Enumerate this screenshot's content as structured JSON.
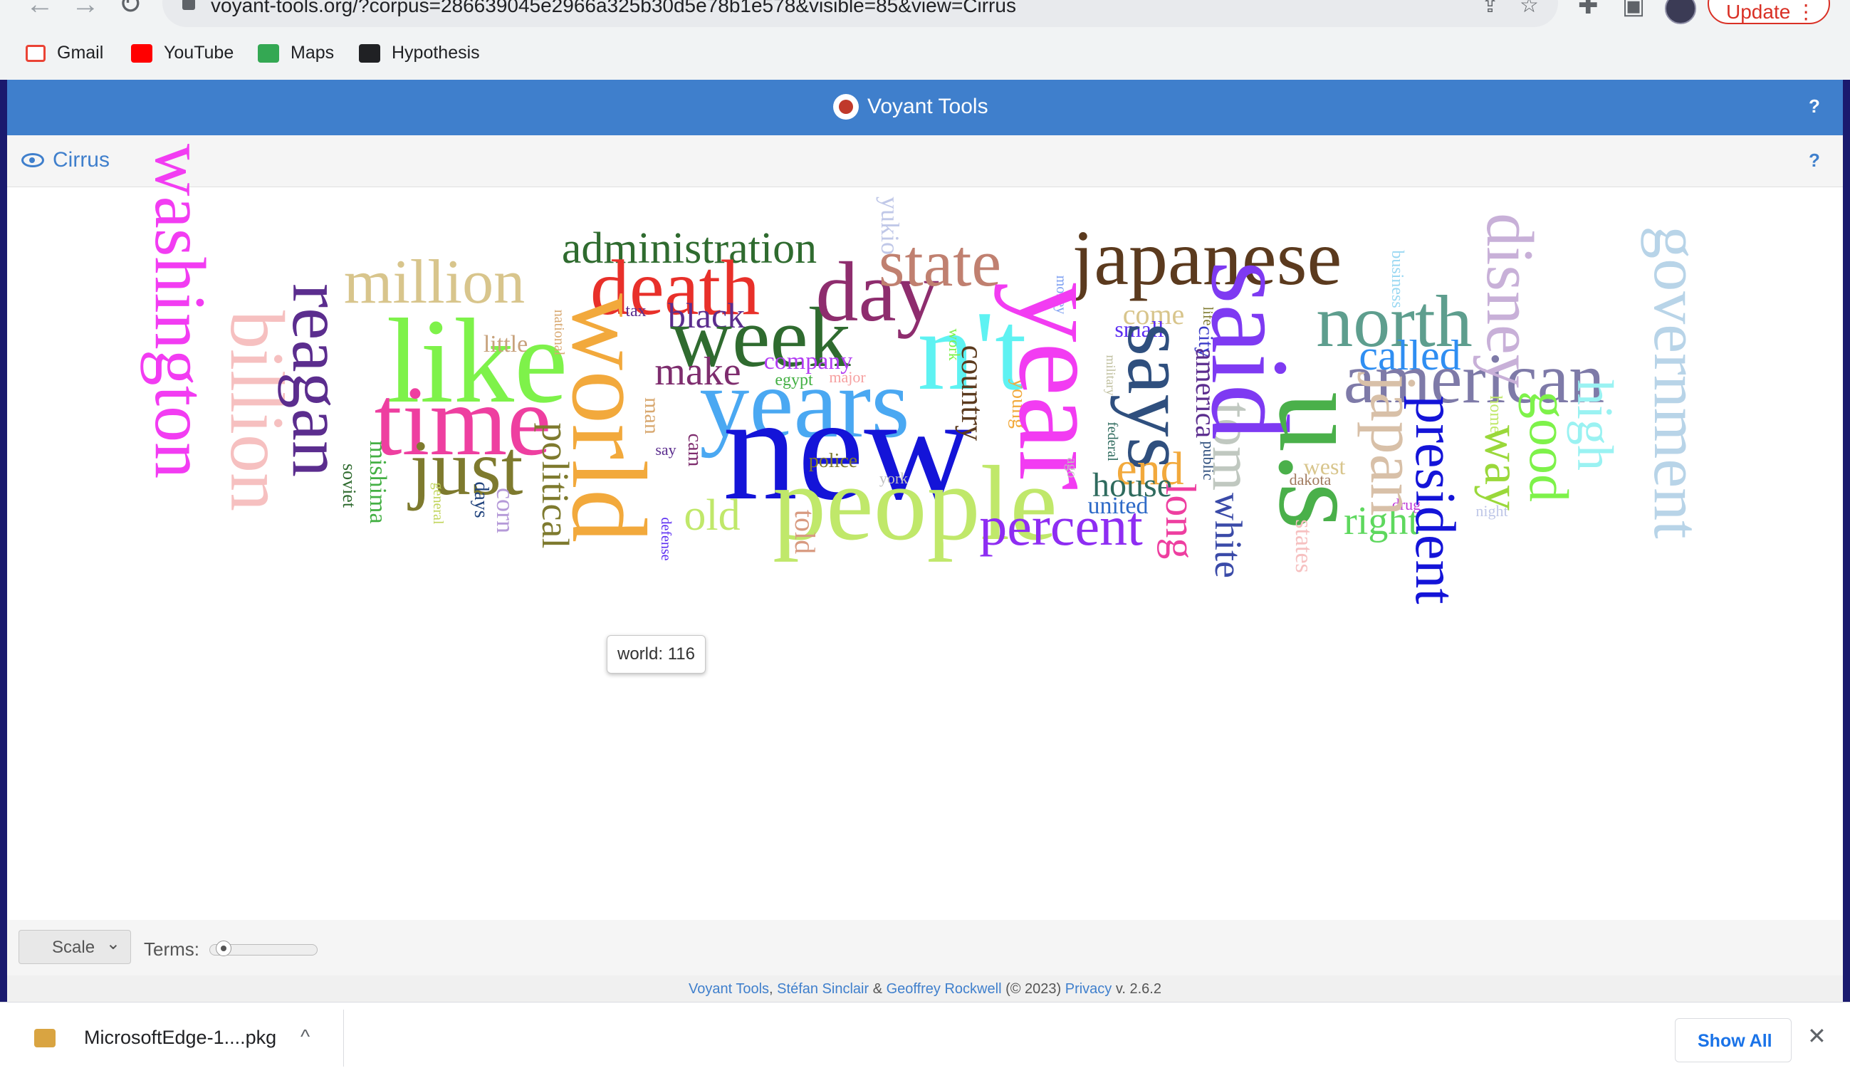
{
  "browser": {
    "url": "voyant-tools.org/?corpus=286639045e2966a325b30d5e78b1e578&visible=85&view=Cirrus",
    "update_label": "Update",
    "bookmarks": [
      "Gmail",
      "YouTube",
      "Maps",
      "Hypothesis"
    ]
  },
  "app": {
    "title": "Voyant Tools",
    "help": "?",
    "panel_title": "Cirrus"
  },
  "cloud": {
    "words": [
      {
        "t": "washington",
        "c": "#f23cf2",
        "s": 102,
        "r": 90
      },
      {
        "t": "billion",
        "c": "#f6c0c0",
        "s": 108,
        "r": 90
      },
      {
        "t": "reagan",
        "c": "#5b2d8e",
        "s": 102,
        "r": 90
      },
      {
        "t": "million",
        "c": "#d8c58c",
        "s": 88,
        "r": 0
      },
      {
        "t": "like",
        "c": "#7ef24a",
        "s": 170,
        "r": 0
      },
      {
        "t": "little",
        "c": "#c7a27c",
        "s": 34,
        "r": 0
      },
      {
        "t": "time",
        "c": "#ee3fa0",
        "s": 140,
        "r": 0
      },
      {
        "t": "just",
        "c": "#7e7a2e",
        "s": 110,
        "r": 0
      },
      {
        "t": "soviet",
        "c": "#2f6b2f",
        "s": 26,
        "r": 90
      },
      {
        "t": "mishima",
        "c": "#44b044",
        "s": 34,
        "r": 90
      },
      {
        "t": "general",
        "c": "#c0d45a",
        "s": 20,
        "r": 90
      },
      {
        "t": "days",
        "c": "#22447e",
        "s": 28,
        "r": 90
      },
      {
        "t": "corn",
        "c": "#b59ad8",
        "s": 36,
        "r": 90
      },
      {
        "t": "political",
        "c": "#7e7a2e",
        "s": 54,
        "r": 90
      },
      {
        "t": "national",
        "c": "#d8a870",
        "s": 20,
        "r": 90
      },
      {
        "t": "administration",
        "c": "#2f6b2f",
        "s": 62,
        "r": 0
      },
      {
        "t": "death",
        "c": "#e8302a",
        "s": 110,
        "r": 0
      },
      {
        "t": "world",
        "c": "#f2a93c",
        "s": 150,
        "r": 90
      },
      {
        "t": "tax",
        "c": "#5b2d8e",
        "s": 24,
        "r": 0
      },
      {
        "t": "black",
        "c": "#5b2d8e",
        "s": 50,
        "r": 0
      },
      {
        "t": "week",
        "c": "#2f6b2f",
        "s": 120,
        "r": 0
      },
      {
        "t": "make",
        "c": "#7e2d6e",
        "s": 56,
        "r": 0
      },
      {
        "t": "company",
        "c": "#b23cf2",
        "s": 34,
        "r": 0
      },
      {
        "t": "egypt",
        "c": "#44b044",
        "s": 24,
        "r": 0
      },
      {
        "t": "major",
        "c": "#f6a0a0",
        "s": 22,
        "r": 0
      },
      {
        "t": "years",
        "c": "#4aa8f2",
        "s": 140,
        "r": 0
      },
      {
        "t": "man",
        "c": "#d8a870",
        "s": 30,
        "r": 90
      },
      {
        "t": "say",
        "c": "#5b2d8e",
        "s": 22,
        "r": 0
      },
      {
        "t": "cam",
        "c": "#7e2d6e",
        "s": 28,
        "r": 90
      },
      {
        "t": "new",
        "c": "#1414d8",
        "s": 210,
        "r": 0
      },
      {
        "t": "police",
        "c": "#7e7a2e",
        "s": 28,
        "r": 0
      },
      {
        "t": "york",
        "c": "#c0c0c0",
        "s": 22,
        "r": 0
      },
      {
        "t": "old",
        "c": "#c0e86a",
        "s": 62,
        "r": 0
      },
      {
        "t": "people",
        "c": "#c0e86a",
        "s": 150,
        "r": 0
      },
      {
        "t": "told",
        "c": "#d89a80",
        "s": 40,
        "r": 90
      },
      {
        "t": "defense",
        "c": "#5b2df2",
        "s": 20,
        "r": 90
      },
      {
        "t": "day",
        "c": "#8e2d6e",
        "s": 120,
        "r": 0
      },
      {
        "t": "yukio",
        "c": "#c0c8e8",
        "s": 36,
        "r": 90
      },
      {
        "t": "state",
        "c": "#c08070",
        "s": 94,
        "r": 0
      },
      {
        "t": "n't",
        "c": "#5ef2f2",
        "s": 160,
        "r": 0
      },
      {
        "t": "work",
        "c": "#7ef24a",
        "s": 22,
        "r": 90
      },
      {
        "t": "country",
        "c": "#5b3a1e",
        "s": 44,
        "r": 90
      },
      {
        "t": "young",
        "c": "#f2a93c",
        "s": 28,
        "r": 90
      },
      {
        "t": "japanese",
        "c": "#5b3a1e",
        "s": 110,
        "r": 0
      },
      {
        "t": "money",
        "c": "#7ea0f2",
        "s": 20,
        "r": 90
      },
      {
        "t": "year",
        "c": "#f23cf2",
        "s": 170,
        "r": 90
      },
      {
        "t": "come",
        "c": "#d8c58c",
        "s": 40,
        "r": 0
      },
      {
        "t": "small",
        "c": "#5b2df2",
        "s": 32,
        "r": 0
      },
      {
        "t": "military",
        "c": "#c0c0a0",
        "s": 18,
        "r": 90
      },
      {
        "t": "says",
        "c": "#2f4f7e",
        "s": 120,
        "r": 90
      },
      {
        "t": "federal",
        "c": "#2f6b5e",
        "s": 20,
        "r": 90
      },
      {
        "t": "ago",
        "c": "#c0c0c0",
        "s": 20,
        "r": 90
      },
      {
        "t": "end",
        "c": "#f2a93c",
        "s": 66,
        "r": 0
      },
      {
        "t": "house",
        "c": "#2f6b5e",
        "s": 48,
        "r": 0
      },
      {
        "t": "united",
        "c": "#2f6bc8",
        "s": 34,
        "r": 0
      },
      {
        "t": "percent",
        "c": "#8e2df2",
        "s": 78,
        "r": 0
      },
      {
        "t": "life",
        "c": "#7e7a2e",
        "s": 20,
        "r": 90
      },
      {
        "t": "city",
        "c": "#3a3ac8",
        "s": 30,
        "r": 90
      },
      {
        "t": "america",
        "c": "#5b2d8e",
        "s": 40,
        "r": 90
      },
      {
        "t": "public",
        "c": "#2f4f7e",
        "s": 22,
        "r": 90
      },
      {
        "t": "long",
        "c": "#ee3fa0",
        "s": 60,
        "r": 90
      },
      {
        "t": "tom",
        "c": "#c0c8c0",
        "s": 80,
        "r": 90
      },
      {
        "t": "white",
        "c": "#3a4aa8",
        "s": 54,
        "r": 90
      },
      {
        "t": "said",
        "c": "#7e3af2",
        "s": 156,
        "r": 90
      },
      {
        "t": "u.s",
        "c": "#4ab04a",
        "s": 170,
        "r": 90
      },
      {
        "t": "business",
        "c": "#9ad8f2",
        "s": 24,
        "r": 90
      },
      {
        "t": "north",
        "c": "#5e9e8e",
        "s": 104,
        "r": 0
      },
      {
        "t": "called",
        "c": "#2f8ef2",
        "s": 60,
        "r": 0
      },
      {
        "t": "american",
        "c": "#7e7aa8",
        "s": 100,
        "r": 0
      },
      {
        "t": "west",
        "c": "#d8c58c",
        "s": 32,
        "r": 0
      },
      {
        "t": "dakota",
        "c": "#a07a5e",
        "s": 22,
        "r": 0
      },
      {
        "t": "states",
        "c": "#f6c0c0",
        "s": 34,
        "r": 90
      },
      {
        "t": "right",
        "c": "#5ed85e",
        "s": 56,
        "r": 0
      },
      {
        "t": "drug",
        "c": "#c03ad8",
        "s": 22,
        "r": 0
      },
      {
        "t": "japan",
        "c": "#d8c0a8",
        "s": 92,
        "r": 90
      },
      {
        "t": "disney",
        "c": "#c8b0d8",
        "s": 94,
        "r": 90
      },
      {
        "t": "president",
        "c": "#1414d8",
        "s": 80,
        "r": 90
      },
      {
        "t": "home",
        "c": "#c0e86a",
        "s": 24,
        "r": 90
      },
      {
        "t": "way",
        "c": "#9ad83a",
        "s": 72,
        "r": 90
      },
      {
        "t": "night",
        "c": "#c0c8e8",
        "s": 22,
        "r": 0
      },
      {
        "t": "good",
        "c": "#7ef24a",
        "s": 78,
        "r": 90
      },
      {
        "t": "high",
        "c": "#9af2f2",
        "s": 72,
        "r": 90
      },
      {
        "t": "government",
        "c": "#b8d4e8",
        "s": 92,
        "r": 90
      }
    ]
  },
  "tooltip": "world: 116",
  "toolbar": {
    "scale_label": "Scale",
    "terms_label": "Terms:",
    "terms_slider_value": 0.1
  },
  "footer": {
    "voyant": "Voyant Tools",
    "sep1": ", ",
    "sinclair": "Stéfan Sinclair",
    "amp": " & ",
    "rockwell": "Geoffrey Rockwell",
    "copy": " (© 2023) ",
    "privacy": "Privacy",
    "version": " v. 2.6.2"
  },
  "downloads": {
    "file": "MicrosoftEdge-1....pkg",
    "show_all": "Show All"
  }
}
